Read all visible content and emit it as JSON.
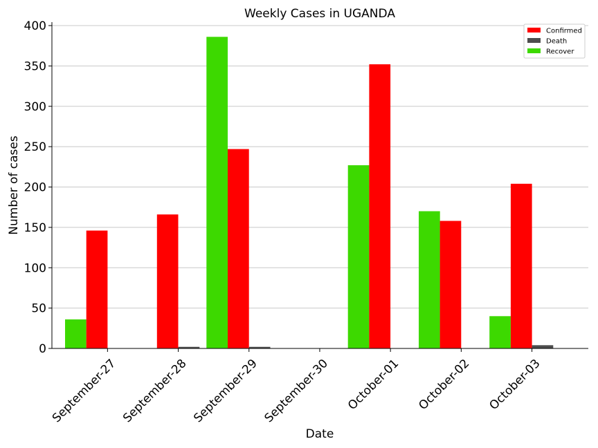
{
  "chart_data": {
    "type": "bar",
    "title": "Weekly Cases in UGANDA",
    "xlabel": "Date",
    "ylabel": "Number of cases",
    "categories": [
      "September-27",
      "September-28",
      "September-29",
      "September-30",
      "October-01",
      "October-02",
      "October-03"
    ],
    "series": [
      {
        "name": "Recover",
        "color": "#3dd900",
        "values": [
          36,
          0,
          386,
          0,
          227,
          170,
          40
        ]
      },
      {
        "name": "Confirmed",
        "color": "#ff0000",
        "values": [
          146,
          166,
          247,
          0,
          352,
          158,
          204
        ]
      },
      {
        "name": "Death",
        "color": "#4d4d4d",
        "values": [
          0,
          2,
          2,
          0,
          0,
          0,
          4
        ]
      }
    ],
    "legend_order": [
      "Confirmed",
      "Death",
      "Recover"
    ],
    "ylim": [
      0,
      400
    ],
    "yticks": [
      0,
      50,
      100,
      150,
      200,
      250,
      300,
      350,
      400
    ],
    "grid": "horizontal",
    "legend_position": "top-right"
  }
}
